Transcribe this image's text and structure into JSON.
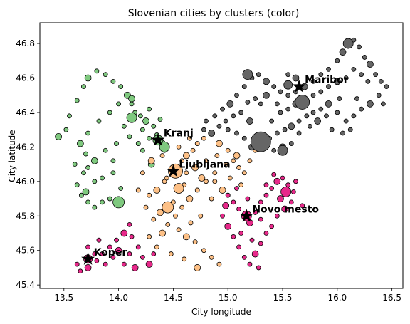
{
  "chart_data": {
    "type": "scatter",
    "title": "Slovenian cities by clusters (color)",
    "xlabel": "City longitude",
    "ylabel": "City latitude",
    "xlim": [
      13.28,
      16.6
    ],
    "ylim": [
      45.38,
      46.92
    ],
    "xticks": [
      13.5,
      14.0,
      14.5,
      15.0,
      15.5,
      16.0,
      16.5
    ],
    "yticks": [
      45.4,
      45.6,
      45.8,
      46.0,
      46.2,
      46.4,
      46.6,
      46.8
    ],
    "xtick_labels": [
      "13.5",
      "14.0",
      "14.5",
      "15.0",
      "15.5",
      "16.0",
      "16.5"
    ],
    "ytick_labels": [
      "45.4",
      "45.6",
      "45.8",
      "46.0",
      "46.2",
      "46.4",
      "46.6",
      "46.8"
    ],
    "grid": false,
    "series": [
      {
        "color": "#7fc97f",
        "points": [
          [
            13.45,
            46.26
          ],
          [
            13.52,
            46.3
          ],
          [
            13.55,
            46.38
          ],
          [
            13.62,
            46.47
          ],
          [
            13.68,
            46.55
          ],
          [
            13.72,
            46.6
          ],
          [
            13.8,
            46.64
          ],
          [
            13.88,
            46.62
          ],
          [
            13.95,
            46.58
          ],
          [
            14.02,
            46.55
          ],
          [
            14.08,
            46.5
          ],
          [
            14.12,
            46.45
          ],
          [
            14.1,
            46.38
          ],
          [
            14.15,
            46.4
          ],
          [
            14.2,
            46.38
          ],
          [
            14.25,
            46.35
          ],
          [
            14.22,
            46.3
          ],
          [
            14.18,
            46.22
          ],
          [
            14.28,
            46.25
          ],
          [
            14.35,
            46.27
          ],
          [
            14.4,
            46.22
          ],
          [
            14.42,
            46.18
          ],
          [
            14.05,
            46.32
          ],
          [
            13.98,
            46.22
          ],
          [
            13.88,
            46.18
          ],
          [
            13.78,
            46.12
          ],
          [
            13.72,
            46.08
          ],
          [
            13.68,
            46.05
          ],
          [
            13.62,
            45.98
          ],
          [
            13.66,
            45.92
          ],
          [
            13.7,
            45.94
          ],
          [
            13.72,
            45.88
          ],
          [
            13.78,
            45.85
          ],
          [
            13.85,
            45.88
          ],
          [
            13.92,
            45.9
          ],
          [
            14.0,
            45.88
          ],
          [
            14.02,
            45.96
          ],
          [
            13.95,
            46.05
          ],
          [
            13.85,
            46.02
          ],
          [
            13.78,
            46.0
          ],
          [
            13.65,
            46.22
          ],
          [
            13.72,
            46.28
          ],
          [
            13.82,
            46.35
          ],
          [
            13.92,
            46.4
          ],
          [
            14.0,
            46.45
          ],
          [
            14.12,
            46.48
          ],
          [
            14.28,
            46.42
          ],
          [
            14.32,
            46.32
          ],
          [
            14.38,
            46.36
          ],
          [
            14.22,
            46.18
          ],
          [
            14.3,
            46.1
          ],
          [
            14.1,
            46.26
          ],
          [
            13.6,
            46.1
          ],
          [
            13.7,
            46.16
          ],
          [
            13.95,
            46.12
          ]
        ]
      },
      {
        "color": "#fdc086",
        "points": [
          [
            14.28,
            45.92
          ],
          [
            14.35,
            45.95
          ],
          [
            14.42,
            46.0
          ],
          [
            14.48,
            46.05
          ],
          [
            14.52,
            46.08
          ],
          [
            14.58,
            46.12
          ],
          [
            14.62,
            46.15
          ],
          [
            14.68,
            46.18
          ],
          [
            14.72,
            46.22
          ],
          [
            14.78,
            46.25
          ],
          [
            14.85,
            46.28
          ],
          [
            14.92,
            46.22
          ],
          [
            15.0,
            46.18
          ],
          [
            15.05,
            46.12
          ],
          [
            15.1,
            46.08
          ],
          [
            15.15,
            46.05
          ],
          [
            15.08,
            46.15
          ],
          [
            14.98,
            46.1
          ],
          [
            14.88,
            46.05
          ],
          [
            14.8,
            46.0
          ],
          [
            14.72,
            45.95
          ],
          [
            14.65,
            45.9
          ],
          [
            14.58,
            45.85
          ],
          [
            14.52,
            45.8
          ],
          [
            14.45,
            45.75
          ],
          [
            14.55,
            45.72
          ],
          [
            14.62,
            45.68
          ],
          [
            14.7,
            45.65
          ],
          [
            14.78,
            45.6
          ],
          [
            14.85,
            45.56
          ],
          [
            14.92,
            45.52
          ],
          [
            14.4,
            45.7
          ],
          [
            14.32,
            45.78
          ],
          [
            14.25,
            45.85
          ],
          [
            14.18,
            45.95
          ],
          [
            14.22,
            46.05
          ],
          [
            14.3,
            46.12
          ],
          [
            14.4,
            46.15
          ],
          [
            14.55,
            46.2
          ],
          [
            14.65,
            46.25
          ],
          [
            14.6,
            45.98
          ],
          [
            14.7,
            46.08
          ],
          [
            14.8,
            46.12
          ],
          [
            14.9,
            46.15
          ],
          [
            15.02,
            46.02
          ],
          [
            15.12,
            45.98
          ],
          [
            14.95,
            45.95
          ],
          [
            14.85,
            45.9
          ],
          [
            14.75,
            45.8
          ],
          [
            14.66,
            45.76
          ],
          [
            14.5,
            45.88
          ],
          [
            14.38,
            45.82
          ],
          [
            14.28,
            45.68
          ],
          [
            14.35,
            45.62
          ],
          [
            14.48,
            45.58
          ],
          [
            14.6,
            45.55
          ],
          [
            14.72,
            45.5
          ],
          [
            15.0,
            45.92
          ],
          [
            15.2,
            46.12
          ],
          [
            15.25,
            46.18
          ],
          [
            14.88,
            46.0
          ],
          [
            14.76,
            46.02
          ],
          [
            14.62,
            46.05
          ],
          [
            14.44,
            46.02
          ]
        ]
      },
      {
        "color": "#e7298a",
        "points": [
          [
            13.62,
            45.52
          ],
          [
            13.65,
            45.48
          ],
          [
            13.72,
            45.5
          ],
          [
            13.8,
            45.54
          ],
          [
            13.85,
            45.58
          ],
          [
            13.92,
            45.62
          ],
          [
            13.98,
            45.66
          ],
          [
            14.05,
            45.7
          ],
          [
            14.1,
            45.75
          ],
          [
            14.12,
            45.68
          ],
          [
            14.18,
            45.62
          ],
          [
            14.22,
            45.56
          ],
          [
            14.15,
            45.5
          ],
          [
            14.05,
            45.52
          ],
          [
            13.95,
            45.56
          ],
          [
            13.88,
            45.52
          ],
          [
            13.78,
            45.58
          ],
          [
            14.28,
            45.52
          ],
          [
            14.32,
            45.58
          ],
          [
            13.72,
            45.62
          ],
          [
            13.82,
            45.66
          ],
          [
            14.1,
            45.58
          ],
          [
            14.0,
            45.6
          ],
          [
            15.0,
            45.92
          ],
          [
            15.05,
            45.88
          ],
          [
            15.1,
            45.84
          ],
          [
            15.15,
            45.8
          ],
          [
            15.2,
            45.76
          ],
          [
            15.25,
            45.82
          ],
          [
            15.3,
            45.88
          ],
          [
            15.35,
            45.92
          ],
          [
            15.4,
            45.96
          ],
          [
            15.45,
            46.0
          ],
          [
            15.5,
            46.02
          ],
          [
            15.55,
            45.98
          ],
          [
            15.6,
            45.94
          ],
          [
            15.58,
            45.88
          ],
          [
            15.52,
            45.84
          ],
          [
            15.45,
            45.8
          ],
          [
            15.4,
            45.74
          ],
          [
            15.35,
            45.7
          ],
          [
            15.3,
            45.64
          ],
          [
            15.25,
            45.58
          ],
          [
            15.2,
            45.52
          ],
          [
            15.15,
            45.56
          ],
          [
            15.1,
            45.62
          ],
          [
            15.05,
            45.68
          ],
          [
            15.0,
            45.74
          ],
          [
            14.95,
            45.8
          ],
          [
            15.12,
            45.7
          ],
          [
            15.22,
            45.66
          ],
          [
            15.28,
            45.5
          ],
          [
            15.48,
            45.9
          ],
          [
            15.68,
            45.86
          ],
          [
            15.62,
            46.0
          ],
          [
            15.35,
            45.98
          ],
          [
            15.08,
            45.96
          ],
          [
            14.98,
            45.86
          ],
          [
            15.18,
            45.9
          ],
          [
            15.42,
            46.04
          ],
          [
            15.3,
            45.78
          ]
        ]
      },
      {
        "color": "#666666",
        "points": [
          [
            14.8,
            46.35
          ],
          [
            14.88,
            46.38
          ],
          [
            14.95,
            46.42
          ],
          [
            15.02,
            46.45
          ],
          [
            15.08,
            46.5
          ],
          [
            15.15,
            46.55
          ],
          [
            15.22,
            46.6
          ],
          [
            15.28,
            46.62
          ],
          [
            15.35,
            46.58
          ],
          [
            15.42,
            46.55
          ],
          [
            15.48,
            46.52
          ],
          [
            15.55,
            46.5
          ],
          [
            15.62,
            46.52
          ],
          [
            15.7,
            46.55
          ],
          [
            15.78,
            46.58
          ],
          [
            15.85,
            46.62
          ],
          [
            15.92,
            46.65
          ],
          [
            16.0,
            46.7
          ],
          [
            16.05,
            46.75
          ],
          [
            16.1,
            46.8
          ],
          [
            16.15,
            46.82
          ],
          [
            16.2,
            46.78
          ],
          [
            16.25,
            46.72
          ],
          [
            16.3,
            46.68
          ],
          [
            16.35,
            46.62
          ],
          [
            16.4,
            46.58
          ],
          [
            16.45,
            46.55
          ],
          [
            16.38,
            46.5
          ],
          [
            16.3,
            46.45
          ],
          [
            16.22,
            46.42
          ],
          [
            16.15,
            46.38
          ],
          [
            16.08,
            46.35
          ],
          [
            16.0,
            46.4
          ],
          [
            15.92,
            46.45
          ],
          [
            15.85,
            46.42
          ],
          [
            15.78,
            46.4
          ],
          [
            15.72,
            46.38
          ],
          [
            15.65,
            46.35
          ],
          [
            15.58,
            46.32
          ],
          [
            15.52,
            46.3
          ],
          [
            15.45,
            46.28
          ],
          [
            15.38,
            46.25
          ],
          [
            15.3,
            46.22
          ],
          [
            15.22,
            46.2
          ],
          [
            15.15,
            46.25
          ],
          [
            15.08,
            46.28
          ],
          [
            15.0,
            46.3
          ],
          [
            14.92,
            46.32
          ],
          [
            14.85,
            46.28
          ],
          [
            14.78,
            46.3
          ],
          [
            15.4,
            46.35
          ],
          [
            15.48,
            46.4
          ],
          [
            15.55,
            46.42
          ],
          [
            15.62,
            46.45
          ],
          [
            15.7,
            46.48
          ],
          [
            15.78,
            46.5
          ],
          [
            15.85,
            46.52
          ],
          [
            15.92,
            46.55
          ],
          [
            16.0,
            46.58
          ],
          [
            16.08,
            46.6
          ],
          [
            16.15,
            46.65
          ],
          [
            16.22,
            46.62
          ],
          [
            16.28,
            46.58
          ],
          [
            15.2,
            46.35
          ],
          [
            15.12,
            46.4
          ],
          [
            15.05,
            46.38
          ],
          [
            14.98,
            46.35
          ],
          [
            15.3,
            46.45
          ],
          [
            15.35,
            46.5
          ],
          [
            15.45,
            46.45
          ],
          [
            15.95,
            46.3
          ],
          [
            16.05,
            46.28
          ],
          [
            16.12,
            46.3
          ],
          [
            15.5,
            46.2
          ],
          [
            15.42,
            46.18
          ],
          [
            15.58,
            46.22
          ],
          [
            15.65,
            46.28
          ],
          [
            15.75,
            46.32
          ],
          [
            15.82,
            46.35
          ],
          [
            16.18,
            46.48
          ],
          [
            16.42,
            46.45
          ],
          [
            15.25,
            46.48
          ],
          [
            15.18,
            46.46
          ],
          [
            15.62,
            46.6
          ],
          [
            15.55,
            46.62
          ],
          [
            16.02,
            46.48
          ],
          [
            15.9,
            46.38
          ]
        ]
      }
    ],
    "city_size_scale": "point size ~ population (relative)",
    "large_points": [
      {
        "x": 14.52,
        "y": 46.06,
        "size": 10,
        "color": "#fdc086"
      },
      {
        "x": 15.3,
        "y": 46.23,
        "size": 14,
        "color": "#666666"
      },
      {
        "x": 15.68,
        "y": 46.46,
        "size": 10,
        "color": "#666666"
      },
      {
        "x": 15.55,
        "y": 46.56,
        "size": 6,
        "color": "#666666"
      },
      {
        "x": 15.17,
        "y": 45.8,
        "size": 7,
        "color": "#e7298a"
      },
      {
        "x": 13.72,
        "y": 45.55,
        "size": 6,
        "color": "#e7298a"
      },
      {
        "x": 14.36,
        "y": 46.24,
        "size": 7,
        "color": "#7fc97f"
      },
      {
        "x": 14.45,
        "y": 45.85,
        "size": 8,
        "color": "#fdc086"
      },
      {
        "x": 14.0,
        "y": 45.88,
        "size": 8,
        "color": "#7fc97f"
      },
      {
        "x": 14.12,
        "y": 46.37,
        "size": 7,
        "color": "#7fc97f"
      },
      {
        "x": 14.42,
        "y": 46.2,
        "size": 7,
        "color": "#7fc97f"
      },
      {
        "x": 15.18,
        "y": 46.62,
        "size": 7,
        "color": "#666666"
      },
      {
        "x": 16.1,
        "y": 46.8,
        "size": 7,
        "color": "#666666"
      },
      {
        "x": 14.55,
        "y": 45.96,
        "size": 7,
        "color": "#fdc086"
      },
      {
        "x": 15.53,
        "y": 45.94,
        "size": 7,
        "color": "#e7298a"
      },
      {
        "x": 15.5,
        "y": 46.18,
        "size": 7,
        "color": "#666666"
      }
    ],
    "centroids": [
      {
        "name": "Maribor",
        "x": 15.65,
        "y": 46.55
      },
      {
        "name": "Kranj",
        "x": 14.36,
        "y": 46.24
      },
      {
        "name": "Ljubljana",
        "x": 14.5,
        "y": 46.06
      },
      {
        "name": "Novo mesto",
        "x": 15.17,
        "y": 45.8
      },
      {
        "name": "Koper",
        "x": 13.72,
        "y": 45.55
      }
    ]
  }
}
